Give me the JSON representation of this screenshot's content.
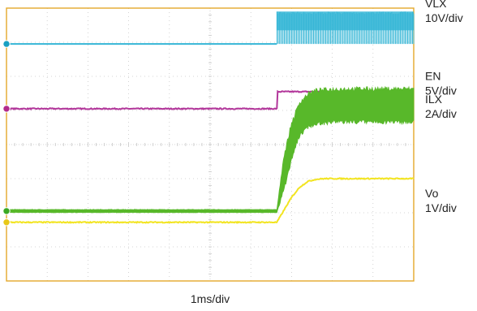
{
  "chart_data": {
    "type": "line",
    "title": "",
    "xlabel": "1ms/div",
    "ylabel": "",
    "grid": true,
    "x_divisions": 10,
    "y_divisions": 8,
    "xlim": [
      0,
      10
    ],
    "ylim": [
      0,
      8
    ],
    "colors": {
      "grid": "#c8c8c8",
      "frame": "#e3a92b"
    },
    "series": [
      {
        "name": "VLX",
        "unit_label": "10V/div",
        "color": "#35b6d6",
        "marker_color": "#1aa0c2",
        "style": "switching",
        "x": [
          0,
          6.64
        ],
        "y": [
          6.95,
          6.95
        ],
        "x_edge": 6.64,
        "y_high_band": [
          7.35,
          7.9
        ],
        "x_end": 10.0
      },
      {
        "name": "EN",
        "unit_label": "5V/div",
        "color": "#b2369a",
        "marker_color": "#b22a8c",
        "style": "step",
        "x": [
          0,
          6.64,
          6.66,
          10.0
        ],
        "y": [
          5.05,
          5.05,
          5.55,
          5.55
        ]
      },
      {
        "name": "ILX",
        "unit_label": "2A/div",
        "color": "#58b82a",
        "marker_color": "#3aa822",
        "style": "ripple",
        "x": [
          0,
          6.64,
          6.8,
          7.0,
          7.2,
          7.4,
          7.6,
          7.8,
          8.2,
          8.8,
          10.0
        ],
        "y": [
          2.05,
          2.05,
          3.1,
          4.1,
          4.75,
          5.0,
          5.1,
          5.12,
          5.15,
          5.15,
          5.15
        ],
        "ripple": [
          0.05,
          0.05,
          0.55,
          0.6,
          0.55,
          0.55,
          0.55,
          0.55,
          0.55,
          0.55,
          0.55
        ]
      },
      {
        "name": "Vo",
        "unit_label": "1V/div",
        "color": "#f2e421",
        "marker_color": "#e8c818",
        "style": "line",
        "x": [
          0,
          6.64,
          6.8,
          7.0,
          7.2,
          7.4,
          7.6,
          7.8,
          8.2,
          10.0
        ],
        "y": [
          1.72,
          1.72,
          2.05,
          2.45,
          2.75,
          2.92,
          2.98,
          3.0,
          3.0,
          3.0
        ]
      }
    ]
  }
}
